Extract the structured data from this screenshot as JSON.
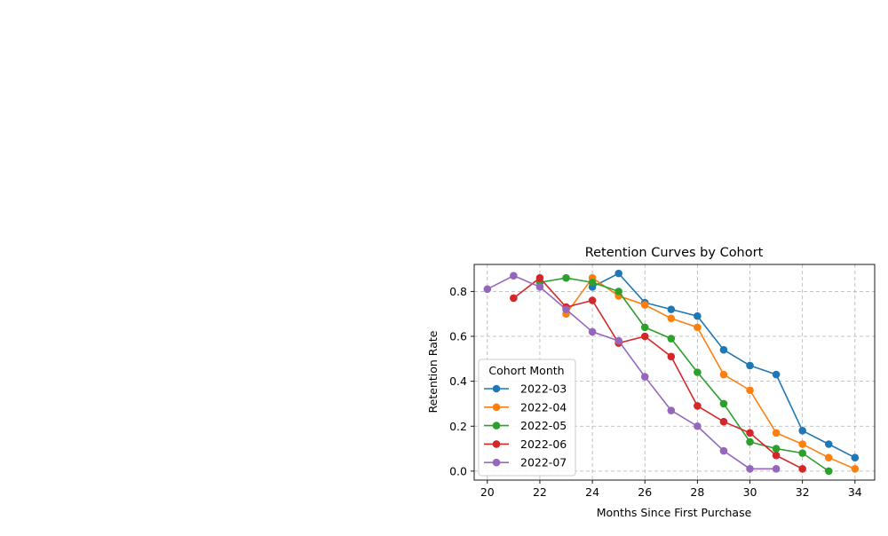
{
  "chart_data": {
    "type": "line",
    "title": "Retention Curves by Cohort",
    "xlabel": "Months Since First Purchase",
    "ylabel": "Retention Rate",
    "xlim": [
      19.5,
      34.75
    ],
    "ylim": [
      -0.04,
      0.92
    ],
    "xticks": [
      20,
      22,
      24,
      26,
      28,
      30,
      32,
      34
    ],
    "yticks": [
      0.0,
      0.2,
      0.4,
      0.6,
      0.8
    ],
    "xtick_labels": [
      "20",
      "22",
      "24",
      "26",
      "28",
      "30",
      "32",
      "34"
    ],
    "ytick_labels": [
      "0.0",
      "0.2",
      "0.4",
      "0.6",
      "0.8"
    ],
    "grid": true,
    "legend_title": "Cohort Month",
    "legend_position": "lower-left",
    "series": [
      {
        "name": "2022-03",
        "color": "#1f77b4",
        "x": [
          24,
          25,
          26,
          27,
          28,
          29,
          30,
          31,
          32,
          33,
          34
        ],
        "y": [
          0.82,
          0.88,
          0.75,
          0.72,
          0.69,
          0.54,
          0.47,
          0.43,
          0.18,
          0.12,
          0.06
        ]
      },
      {
        "name": "2022-04",
        "color": "#ff7f0e",
        "x": [
          23,
          24,
          25,
          26,
          27,
          28,
          29,
          30,
          31,
          32,
          33,
          34
        ],
        "y": [
          0.7,
          0.86,
          0.78,
          0.74,
          0.68,
          0.64,
          0.43,
          0.36,
          0.17,
          0.12,
          0.06,
          0.01
        ]
      },
      {
        "name": "2022-05",
        "color": "#2ca02c",
        "x": [
          22,
          23,
          24,
          25,
          26,
          27,
          28,
          29,
          30,
          31,
          32,
          33
        ],
        "y": [
          0.84,
          0.86,
          0.84,
          0.8,
          0.64,
          0.59,
          0.44,
          0.3,
          0.13,
          0.1,
          0.08,
          0.0
        ]
      },
      {
        "name": "2022-06",
        "color": "#d62728",
        "x": [
          21,
          22,
          23,
          24,
          25,
          26,
          27,
          28,
          29,
          30,
          31,
          32
        ],
        "y": [
          0.77,
          0.86,
          0.73,
          0.76,
          0.57,
          0.6,
          0.51,
          0.29,
          0.22,
          0.17,
          0.07,
          0.01
        ]
      },
      {
        "name": "2022-07",
        "color": "#9467bd",
        "x": [
          20,
          21,
          22,
          23,
          24,
          25,
          26,
          27,
          28,
          29,
          30,
          31
        ],
        "y": [
          0.81,
          0.87,
          0.82,
          0.72,
          0.62,
          0.58,
          0.42,
          0.27,
          0.2,
          0.09,
          0.01,
          0.01
        ]
      }
    ]
  }
}
